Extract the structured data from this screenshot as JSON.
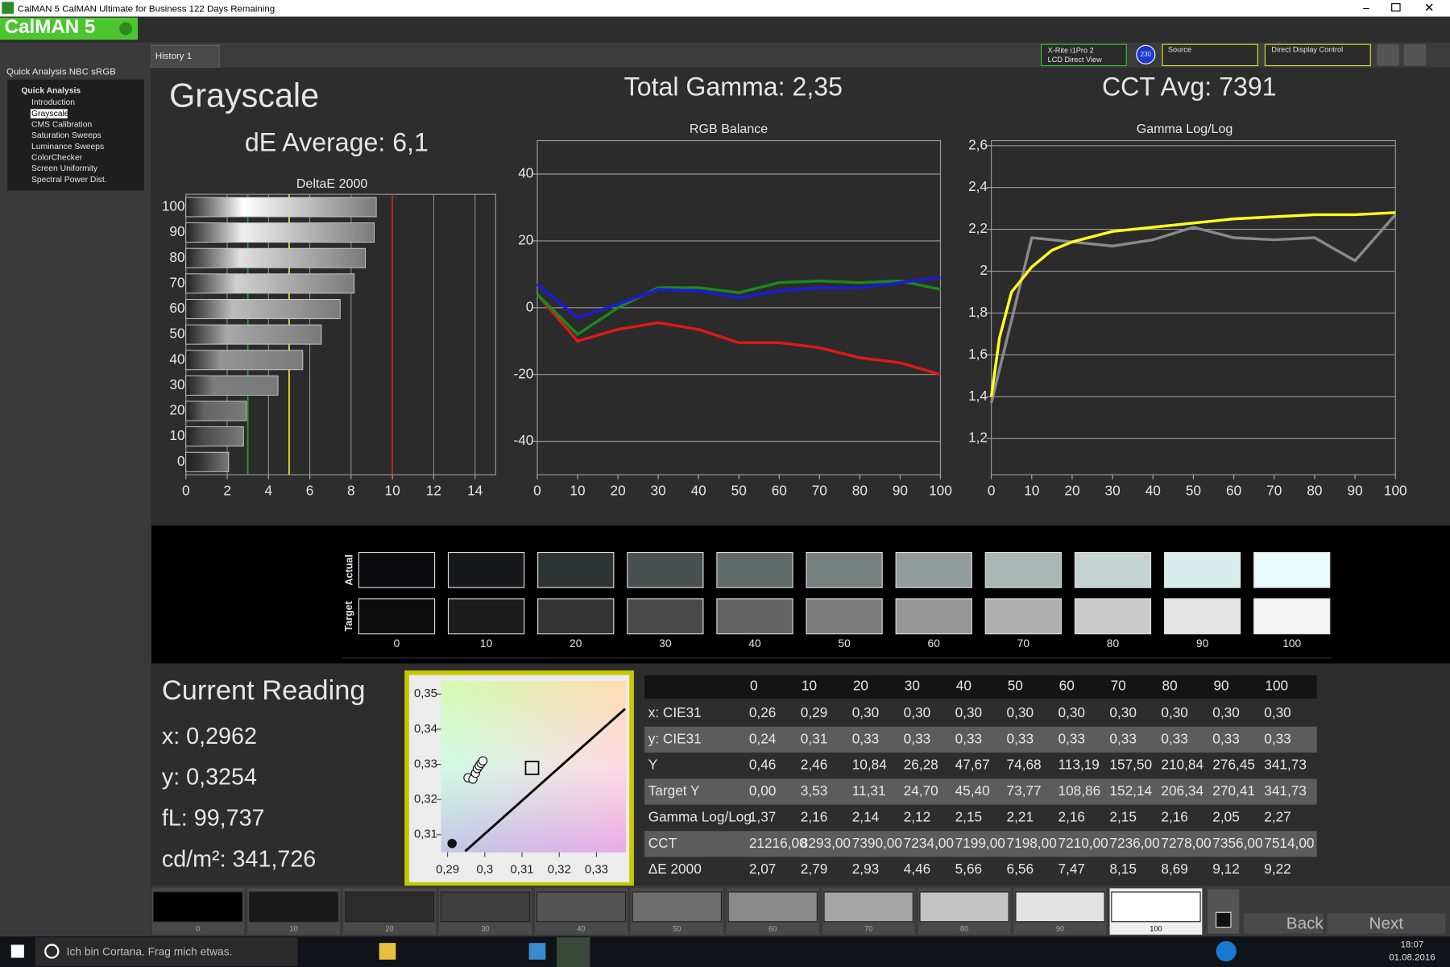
{
  "window": {
    "title": "CalMAN 5 CalMAN Ultimate for Business 122 Days Remaining",
    "logo": "CalMAN 5",
    "tab": "History 1"
  },
  "sidebar": {
    "title": "Quick Analysis NBC sRGB",
    "section": "Quick Analysis",
    "items": [
      "Introduction",
      "Grayscale",
      "CMS Calibration",
      "Saturation Sweeps",
      "Luminance Sweeps",
      "ColorChecker",
      "Screen Uniformity",
      "Spectral Power Dist."
    ]
  },
  "toolbar": {
    "meter": "X-Rite i1Pro 2",
    "meter_mode": "LCD Direct View",
    "badge": "230",
    "source": "Source",
    "display": "Direct Display Control"
  },
  "headings": {
    "page": "Grayscale",
    "de_average": "dE Average: 6,1",
    "total_gamma": "Total Gamma: 2,35",
    "cct_avg": "CCT Avg: 7391"
  },
  "charts": [
    {
      "type": "hbar",
      "title": "DeltaE 2000",
      "categories": [
        100,
        90,
        80,
        70,
        60,
        50,
        40,
        30,
        20,
        10,
        0
      ],
      "values": [
        9.22,
        9.12,
        8.69,
        8.15,
        7.47,
        6.56,
        5.66,
        4.46,
        2.93,
        2.79,
        2.07
      ],
      "colors": [
        "#ffffff",
        "#f0f0f0",
        "#e0e0e0",
        "#d0d0d0",
        "#bcbcbc",
        "#a8a8a8",
        "#949494",
        "#7c7c7c",
        "#646464",
        "#4c4c4c",
        "#303030"
      ],
      "xlim": [
        0,
        15
      ],
      "xticks": [
        0,
        2,
        4,
        6,
        8,
        10,
        12,
        14
      ],
      "grid": true,
      "reference_lines": [
        {
          "value": 3,
          "color": "#2a9a2a"
        },
        {
          "value": 5,
          "color": "#e8e830"
        },
        {
          "value": 10,
          "color": "#d02020"
        }
      ]
    },
    {
      "type": "line",
      "title": "RGB Balance",
      "x": [
        0,
        10,
        20,
        30,
        40,
        50,
        60,
        70,
        80,
        90,
        100
      ],
      "series": [
        {
          "color": "#e01818",
          "values": [
            4,
            -10,
            -6.5,
            -4.5,
            -6.5,
            -10.5,
            -10.5,
            -12,
            -15,
            -16.5,
            -20
          ]
        },
        {
          "color": "#1a8a1a",
          "values": [
            4,
            -8,
            0,
            6,
            6,
            4.5,
            7.5,
            8,
            7.5,
            8,
            5.5
          ]
        },
        {
          "color": "#1a1ae0",
          "values": [
            7,
            -3,
            1,
            5.5,
            5,
            3,
            5,
            6,
            6,
            7.5,
            9
          ]
        }
      ],
      "xlim": [
        0,
        100
      ],
      "ylim": [
        -50,
        50
      ],
      "xticks": [
        0,
        10,
        20,
        30,
        40,
        50,
        60,
        70,
        80,
        90,
        100
      ],
      "yticks": [
        -40,
        -20,
        0,
        20,
        40
      ],
      "grid": true
    },
    {
      "type": "line",
      "title": "Gamma Log/Log",
      "series": [
        {
          "color": "#8a8a8a",
          "x": [
            0,
            10,
            20,
            30,
            40,
            50,
            60,
            70,
            80,
            90,
            100
          ],
          "values": [
            1.37,
            2.16,
            2.14,
            2.12,
            2.15,
            2.21,
            2.16,
            2.15,
            2.16,
            2.05,
            2.27
          ]
        },
        {
          "color": "#ffff20",
          "x": [
            0,
            2,
            5,
            10,
            15,
            20,
            30,
            40,
            50,
            60,
            70,
            80,
            90,
            100
          ],
          "values": [
            1.4,
            1.68,
            1.9,
            2.02,
            2.1,
            2.14,
            2.19,
            2.21,
            2.23,
            2.25,
            2.26,
            2.27,
            2.27,
            2.28
          ]
        }
      ],
      "xlim": [
        0,
        100
      ],
      "ylim": [
        1.027,
        2.624
      ],
      "xticks": [
        0,
        10,
        20,
        30,
        40,
        50,
        60,
        70,
        80,
        90,
        100
      ],
      "yticks": [
        {
          "value": 1.2,
          "label": "1,2"
        },
        {
          "value": 1.4,
          "label": "1,4"
        },
        {
          "value": 1.6,
          "label": "1,6"
        },
        {
          "value": 1.8,
          "label": "1,8"
        },
        2,
        {
          "value": 2.2,
          "label": "2,2"
        },
        {
          "value": 2.4,
          "label": "2,4"
        },
        {
          "value": 2.6,
          "label": "2,6"
        }
      ],
      "grid": true
    },
    {
      "type": "scatter",
      "x": [
        0.2912,
        0.2955,
        0.2968,
        0.2975,
        0.298,
        0.2985,
        0.299,
        0.2995
      ],
      "values": [
        0.3075,
        0.3262,
        0.3258,
        0.3275,
        0.3288,
        0.3296,
        0.3303,
        0.331
      ],
      "target": {
        "x": 0.3127,
        "y": 0.329
      },
      "xlim": [
        0.28826,
        0.33795
      ],
      "ylim": [
        0.305,
        0.3537
      ],
      "xticks": [
        {
          "value": 0.29,
          "label": "0,29"
        },
        {
          "value": 0.3,
          "label": "0,3"
        },
        {
          "value": 0.31,
          "label": "0,31"
        },
        {
          "value": 0.32,
          "label": "0,32"
        },
        {
          "value": 0.33,
          "label": "0,33"
        }
      ],
      "yticks": [
        {
          "value": 0.31,
          "label": "0,31"
        },
        {
          "value": 0.32,
          "label": "0,32"
        },
        {
          "value": 0.33,
          "label": "0,33"
        },
        {
          "value": 0.34,
          "label": "0,34"
        },
        {
          "value": 0.35,
          "label": "0,35"
        }
      ]
    }
  ],
  "swatches": {
    "row_labels": [
      "Actual",
      "Target"
    ],
    "levels": [
      0,
      10,
      20,
      30,
      40,
      50,
      60,
      70,
      80,
      90,
      100
    ],
    "actual_colors": [
      "#0a0a0f",
      "#16181c",
      "#2e3434",
      "#495150",
      "#5f6a69",
      "#75817f",
      "#8f9c99",
      "#a8b7b4",
      "#c3d3d2",
      "#d9ecec",
      "#e8fbfd"
    ],
    "target_colors": [
      "#0c0c0c",
      "#1c1c1c",
      "#333333",
      "#4a4a4a",
      "#636363",
      "#7b7b7b",
      "#969696",
      "#b0b0b0",
      "#cacaca",
      "#e4e4e4",
      "#f5f5f5"
    ]
  },
  "reading": {
    "title": "Current Reading",
    "lines": [
      "x: 0,2962",
      "y: 0,3254",
      "fL: 99,737",
      "cd/m²: 341,726"
    ]
  },
  "table": {
    "header": [
      0,
      10,
      20,
      30,
      40,
      50,
      60,
      70,
      80,
      90,
      100
    ],
    "rows": [
      {
        "label": "x: CIE31",
        "cells": [
          "0,26",
          "0,29",
          "0,30",
          "0,30",
          "0,30",
          "0,30",
          "0,30",
          "0,30",
          "0,30",
          "0,30",
          "0,30"
        ]
      },
      {
        "label": "y: CIE31",
        "cells": [
          "0,24",
          "0,31",
          "0,33",
          "0,33",
          "0,33",
          "0,33",
          "0,33",
          "0,33",
          "0,33",
          "0,33",
          "0,33"
        ]
      },
      {
        "label": "Y",
        "cells": [
          "0,46",
          "2,46",
          "10,84",
          "26,28",
          "47,67",
          "74,68",
          "113,19",
          "157,50",
          "210,84",
          "276,45",
          "341,73"
        ]
      },
      {
        "label": "Target Y",
        "cells": [
          "0,00",
          "3,53",
          "11,31",
          "24,70",
          "45,40",
          "73,77",
          "108,86",
          "152,14",
          "206,34",
          "270,41",
          "341,73"
        ]
      },
      {
        "label": "Gamma Log/Log",
        "cells": [
          "1,37",
          "2,16",
          "2,14",
          "2,12",
          "2,15",
          "2,21",
          "2,16",
          "2,15",
          "2,16",
          "2,05",
          "2,27"
        ]
      },
      {
        "label": "CCT",
        "cells": [
          "21216,00",
          "8293,00",
          "7390,00",
          "7234,00",
          "7199,00",
          "7198,00",
          "7210,00",
          "7236,00",
          "7278,00",
          "7356,00",
          "7514,00"
        ]
      },
      {
        "label": "ΔE 2000",
        "cells": [
          "2,07",
          "2,79",
          "2,93",
          "4,46",
          "5,66",
          "6,56",
          "7,47",
          "8,15",
          "8,69",
          "9,12",
          "9,22"
        ]
      }
    ]
  },
  "strip": {
    "levels": [
      0,
      10,
      20,
      30,
      40,
      50,
      60,
      70,
      80,
      90,
      100
    ],
    "colors": [
      "#000000",
      "#191919",
      "#2c2c2c",
      "#3e3e3e",
      "#555555",
      "#6e6e6e",
      "#8a8a8a",
      "#a6a6a6",
      "#c4c4c4",
      "#e2e2e2",
      "#ffffff"
    ]
  },
  "nav": {
    "back": "Back",
    "next": "Next"
  },
  "taskbar": {
    "search": "Ich bin Cortana. Frag mich etwas.",
    "time": "18:07",
    "date": "01.08.2016"
  }
}
